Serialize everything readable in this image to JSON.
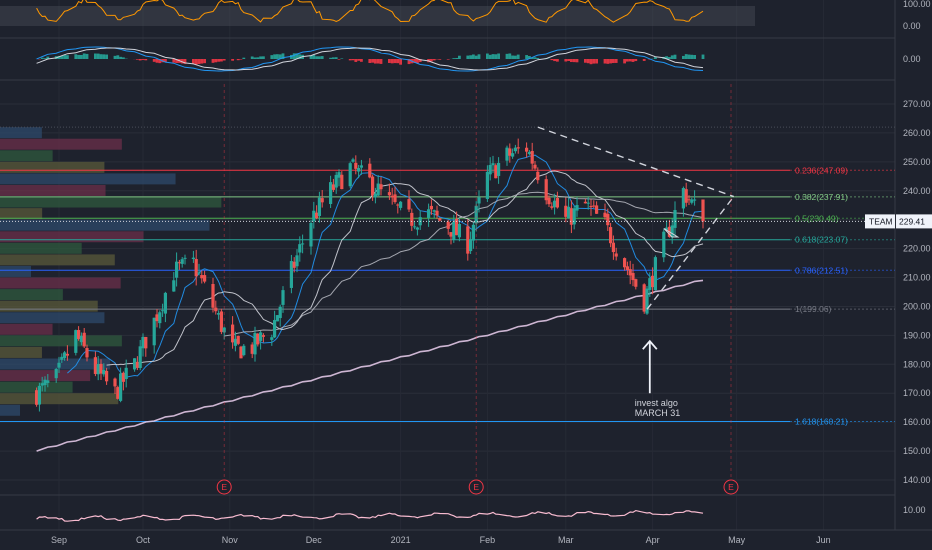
{
  "chart_data": {
    "type": "candlestick",
    "symbol": "TEAM",
    "last_price": "229.41",
    "x_axis_labels": [
      "Sep",
      "Oct",
      "Nov",
      "Dec",
      "2021",
      "Feb",
      "Mar",
      "Apr",
      "May",
      "Jun"
    ],
    "y_axis": {
      "range": [
        132,
        278
      ],
      "tick_labels": [
        "270.00",
        "260.00",
        "250.00",
        "240.00",
        "230.00",
        "220.00",
        "210.00",
        "200.00",
        "190.00",
        "180.00",
        "170.00",
        "160.00",
        "150.00",
        "140.00"
      ]
    },
    "fib_levels": [
      {
        "label": "0.236(247.09)",
        "value": 247.09,
        "color": "#f23645"
      },
      {
        "label": "0.382(237.91)",
        "value": 237.91,
        "color": "#81c784"
      },
      {
        "label": "0.5(230.49)",
        "value": 230.49,
        "color": "#4caf50"
      },
      {
        "label": "0.618(223.07)",
        "value": 223.07,
        "color": "#26a69a"
      },
      {
        "label": "0.786(212.51)",
        "value": 212.51,
        "color": "#2962ff"
      },
      {
        "label": "1(199.06)",
        "value": 199.06,
        "color": "#787b86"
      },
      {
        "label": "1.618(160.21)",
        "value": 160.21,
        "color": "#2196f3"
      }
    ],
    "annotation": {
      "lines": [
        "invest algo",
        "MARCH 31"
      ]
    },
    "earnings_marker": "E",
    "rsi_panel": {
      "tick_labels": [
        "100.00",
        "0.00"
      ]
    },
    "macd_panel": {
      "tick_labels": [
        "0.00"
      ]
    },
    "volume_panel": {
      "tick_labels": [
        "10.00"
      ]
    },
    "price_series": [
      [
        "2020-08-24",
        170
      ],
      [
        "2020-08-31",
        175
      ],
      [
        "2020-09-07",
        190
      ],
      [
        "2020-09-14",
        178
      ],
      [
        "2020-09-21",
        170
      ],
      [
        "2020-09-28",
        180
      ],
      [
        "2020-10-05",
        195
      ],
      [
        "2020-10-12",
        212
      ],
      [
        "2020-10-19",
        215
      ],
      [
        "2020-10-26",
        200
      ],
      [
        "2020-11-02",
        185
      ],
      [
        "2020-11-09",
        186
      ],
      [
        "2020-11-16",
        192
      ],
      [
        "2020-11-23",
        212
      ],
      [
        "2020-11-30",
        230
      ],
      [
        "2020-12-07",
        240
      ],
      [
        "2020-12-14",
        248
      ],
      [
        "2020-12-21",
        243
      ],
      [
        "2020-12-28",
        236
      ],
      [
        "2021-01-04",
        230
      ],
      [
        "2021-01-11",
        232
      ],
      [
        "2021-01-18",
        228
      ],
      [
        "2021-01-25",
        222
      ],
      [
        "2021-02-01",
        245
      ],
      [
        "2021-02-08",
        252
      ],
      [
        "2021-02-15",
        255
      ],
      [
        "2021-02-22",
        240
      ],
      [
        "2021-03-01",
        230
      ],
      [
        "2021-03-08",
        235
      ],
      [
        "2021-03-15",
        228
      ],
      [
        "2021-03-22",
        215
      ],
      [
        "2021-03-29",
        202
      ],
      [
        "2021-04-05",
        222
      ],
      [
        "2021-04-12",
        240
      ],
      [
        "2021-04-19",
        230
      ]
    ]
  }
}
